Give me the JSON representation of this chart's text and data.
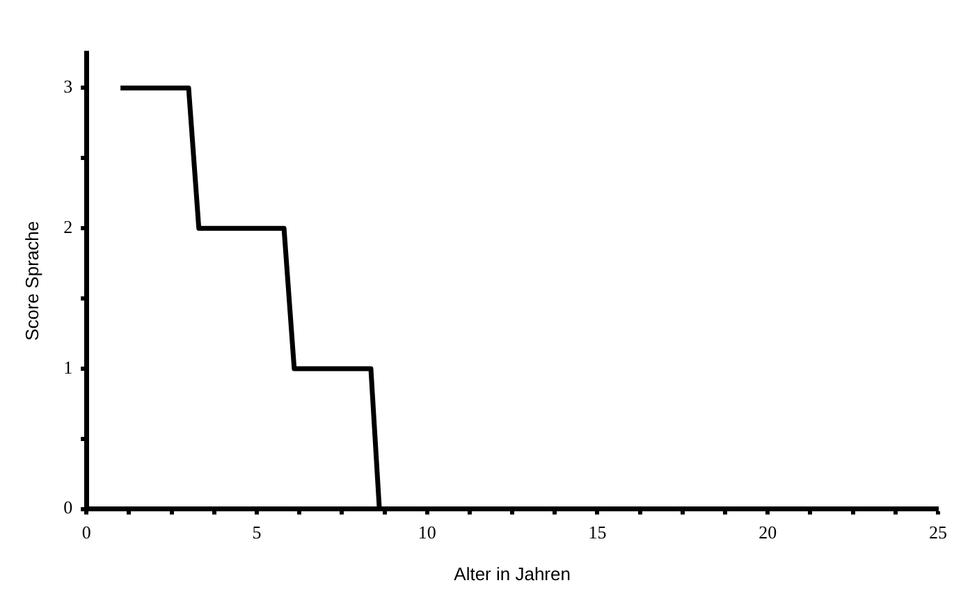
{
  "chart_data": {
    "type": "line",
    "xlabel": "Alter in Jahren",
    "ylabel": "Score Sprache",
    "series": [
      {
        "color": "#000000",
        "x": [
          1,
          3.0,
          3.3,
          5.8,
          6.1,
          8.35,
          8.6,
          25
        ],
        "values": [
          3,
          3,
          2,
          2,
          1,
          1,
          0,
          0
        ]
      }
    ],
    "xlim": [
      0,
      25
    ],
    "ylim": [
      0,
      3.25
    ],
    "xticks": [
      0,
      {
        "value": 1.25,
        "label": null
      },
      {
        "value": 2.5,
        "label": null
      },
      {
        "value": 3.75,
        "label": null
      },
      5,
      {
        "value": 6.25,
        "label": null
      },
      {
        "value": 7.5,
        "label": null
      },
      {
        "value": 8.75,
        "label": null
      },
      10,
      {
        "value": 11.25,
        "label": null
      },
      {
        "value": 12.5,
        "label": null
      },
      {
        "value": 13.75,
        "label": null
      },
      15,
      {
        "value": 16.25,
        "label": null
      },
      {
        "value": 17.5,
        "label": null
      },
      {
        "value": 18.75,
        "label": null
      },
      20,
      {
        "value": 21.25,
        "label": null
      },
      {
        "value": 22.5,
        "label": null
      },
      {
        "value": 23.75,
        "label": null
      },
      25
    ],
    "yticks": [
      0,
      {
        "value": 0.5,
        "label": null
      },
      1,
      {
        "value": 1.5,
        "label": null
      },
      2,
      {
        "value": 2.5,
        "label": null
      },
      3
    ],
    "grid": false,
    "legend": false,
    "marker": "none",
    "line_style": "solid"
  }
}
